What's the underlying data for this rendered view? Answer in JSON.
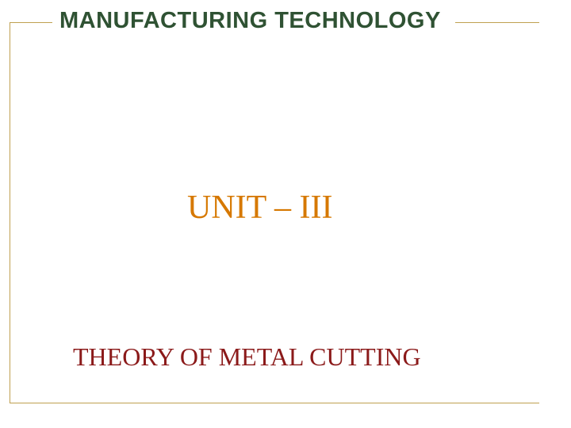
{
  "slide": {
    "title": "MANUFACTURING TECHNOLOGY",
    "unit": "UNIT – III",
    "subtitle": "THEORY OF METAL CUTTING"
  },
  "styles": {
    "title_color": "#2f5233",
    "title_fontsize": 29,
    "unit_color": "#d67800",
    "unit_fontsize": 42,
    "subtitle_color": "#8b1a1a",
    "subtitle_fontsize": 32,
    "frame_color": "#bfa050",
    "background_color": "#ffffff"
  }
}
